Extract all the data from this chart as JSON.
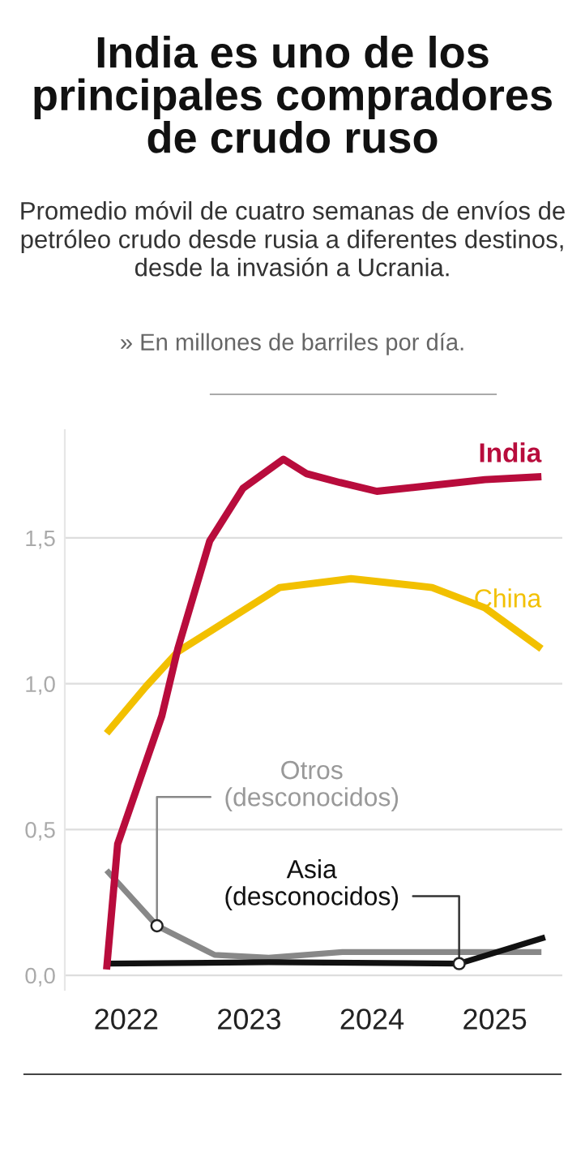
{
  "chart_data": {
    "type": "line",
    "title": "India es uno de los principales compradores de crudo ruso",
    "subtitle": "Promedio móvil de cuatro semanas de envíos de petróleo crudo desde rusia a diferentes destinos, desde la invasión a Ucrania.",
    "ylabel": "» En millones de barriles por día.",
    "series": [
      {
        "name": "India",
        "color": "#b80c3c",
        "x": [
          2021.84,
          2021.93,
          2022.29,
          2022.42,
          2022.68,
          2022.95,
          2023.28,
          2023.47,
          2023.74,
          2024.04,
          2024.49,
          2024.92,
          2025.38
        ],
        "values": [
          0.02,
          0.45,
          0.89,
          1.12,
          1.49,
          1.67,
          1.77,
          1.72,
          1.69,
          1.66,
          1.68,
          1.7,
          1.71
        ]
      },
      {
        "name": "China",
        "color": "#f2c000",
        "x": [
          2021.84,
          2022.16,
          2022.42,
          2023.25,
          2023.83,
          2024.49,
          2024.92,
          2025.38
        ],
        "values": [
          0.83,
          0.99,
          1.11,
          1.33,
          1.36,
          1.33,
          1.26,
          1.12
        ]
      },
      {
        "name": "Otros\n(desconocidos)",
        "color": "#888888",
        "x": [
          2021.84,
          2022.25,
          2022.72,
          2023.16,
          2023.76,
          2024.68,
          2025.38
        ],
        "values": [
          0.36,
          0.17,
          0.07,
          0.06,
          0.08,
          0.08,
          0.08
        ]
      },
      {
        "name": "Asia\n(desconocidos)",
        "color": "#111111",
        "x": [
          2021.84,
          2023.16,
          2024.71,
          2025.41
        ],
        "values": [
          0.04,
          0.045,
          0.04,
          0.13
        ]
      }
    ],
    "xlim": [
      2021.5,
      2025.55
    ],
    "xticks": [
      2022,
      2023,
      2024,
      2025
    ],
    "ylim": [
      -0.05,
      1.87
    ],
    "yticks": [
      {
        "value": 0,
        "label": "0,0"
      },
      {
        "value": 0.5,
        "label": "0,5"
      },
      {
        "value": 1,
        "label": "1,0"
      },
      {
        "value": 1.5,
        "label": "1,5"
      }
    ],
    "grid": "y",
    "legend": false,
    "marker": "none",
    "line_style": "solid"
  }
}
